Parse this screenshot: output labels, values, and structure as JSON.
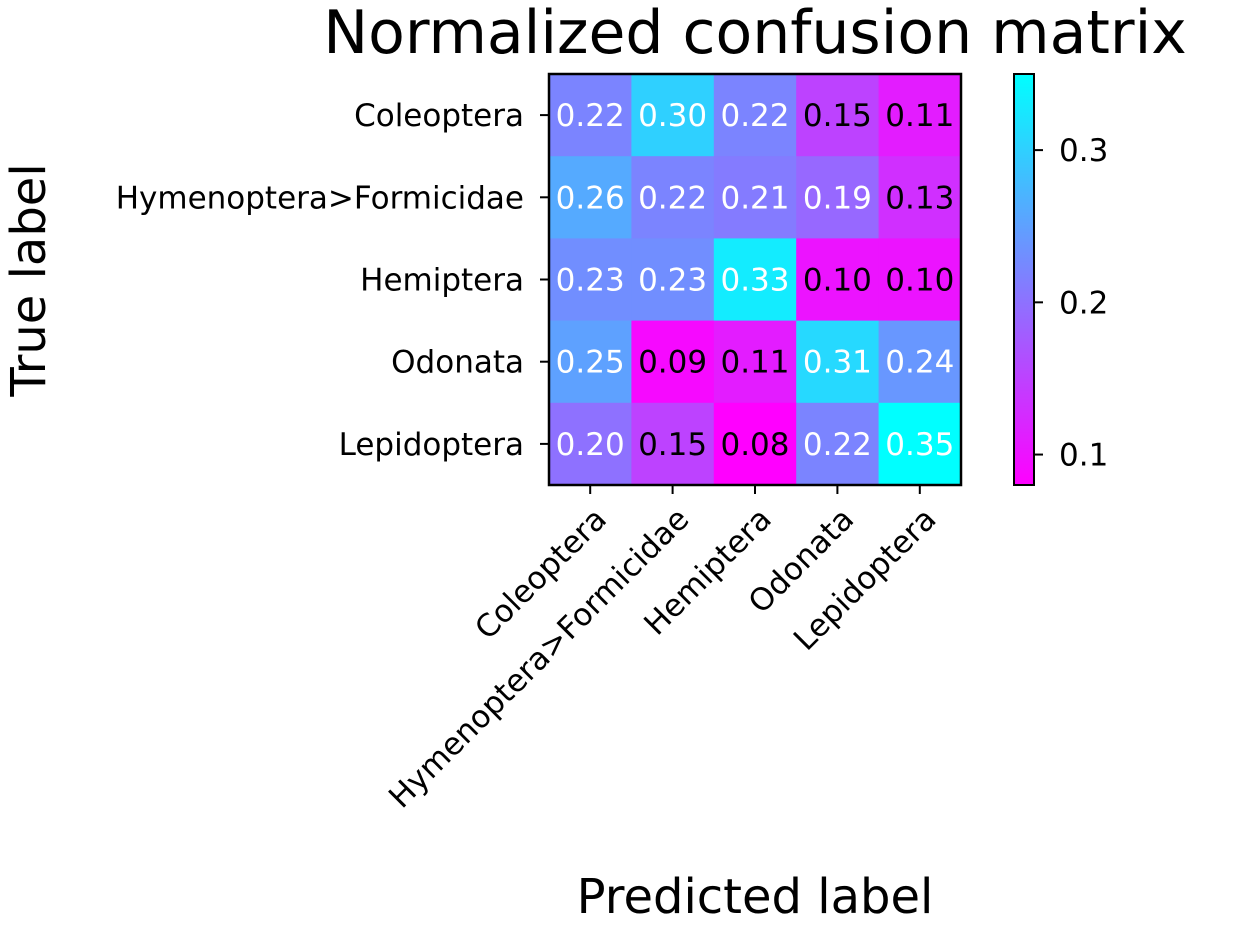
{
  "chart_data": {
    "type": "heatmap",
    "title": "Normalized confusion matrix",
    "xlabel": "Predicted label",
    "ylabel": "True label",
    "x_categories": [
      "Coleoptera",
      "Hymenoptera>Formicidae",
      "Hemiptera",
      "Odonata",
      "Lepidoptera"
    ],
    "y_categories": [
      "Coleoptera",
      "Hymenoptera>Formicidae",
      "Hemiptera",
      "Odonata",
      "Lepidoptera"
    ],
    "values": [
      [
        0.22,
        0.3,
        0.22,
        0.15,
        0.11
      ],
      [
        0.26,
        0.22,
        0.21,
        0.19,
        0.13
      ],
      [
        0.23,
        0.23,
        0.33,
        0.1,
        0.1
      ],
      [
        0.25,
        0.09,
        0.11,
        0.31,
        0.24
      ],
      [
        0.2,
        0.15,
        0.08,
        0.22,
        0.35
      ]
    ],
    "value_labels": [
      [
        "0.22",
        "0.30",
        "0.22",
        "0.15",
        "0.11"
      ],
      [
        "0.26",
        "0.22",
        "0.21",
        "0.19",
        "0.13"
      ],
      [
        "0.23",
        "0.23",
        "0.33",
        "0.10",
        "0.10"
      ],
      [
        "0.25",
        "0.09",
        "0.11",
        "0.31",
        "0.24"
      ],
      [
        "0.20",
        "0.15",
        "0.08",
        "0.22",
        "0.35"
      ]
    ],
    "colormap": "cool (reversed)",
    "color_low": "#ff00ff",
    "color_high": "#00ffff",
    "vmin": 0.08,
    "vmax": 0.35,
    "colorbar": {
      "ticks": [
        0.1,
        0.2,
        0.3
      ],
      "tick_labels": [
        "0.1",
        "0.2",
        "0.3"
      ]
    },
    "grid": false,
    "legend": "colorbar at right"
  }
}
